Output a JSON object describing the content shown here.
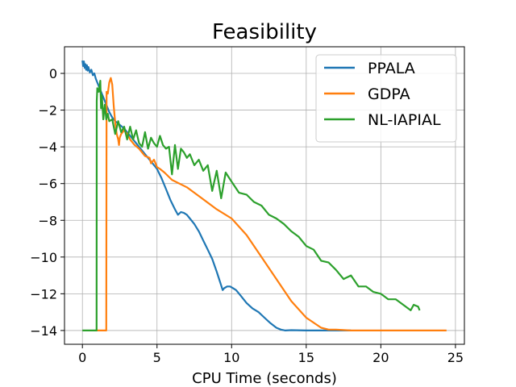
{
  "chart_data": {
    "type": "line",
    "title": "Feasibility",
    "xlabel": "CPU Time (seconds)",
    "ylabel": "",
    "xlim": [
      -1.2,
      25.6
    ],
    "ylim": [
      -14.75,
      1.45
    ],
    "xticks": [
      0,
      5,
      10,
      15,
      20,
      25
    ],
    "yticks": [
      0,
      -2,
      -4,
      -6,
      -8,
      -10,
      -12,
      -14
    ],
    "xtick_labels": [
      "0",
      "5",
      "10",
      "15",
      "20",
      "25"
    ],
    "ytick_labels": [
      "0",
      "−2",
      "−4",
      "−6",
      "−8",
      "−10",
      "−12",
      "−14"
    ],
    "grid": true,
    "legend_position": "top-right",
    "series": [
      {
        "name": "PPALA",
        "color": "#1f77b4",
        "x": [
          0.0,
          0.05,
          0.1,
          0.15,
          0.2,
          0.25,
          0.3,
          0.35,
          0.4,
          0.5,
          0.6,
          0.7,
          0.8,
          0.9,
          1.0,
          1.2,
          1.4,
          1.6,
          1.8,
          2.0,
          2.2,
          2.5,
          2.8,
          3.0,
          3.3,
          3.6,
          4.0,
          4.4,
          4.7,
          5.0,
          5.3,
          5.6,
          5.9,
          6.2,
          6.4,
          6.6,
          6.8,
          7.0,
          7.2,
          7.5,
          7.8,
          8.1,
          8.4,
          8.7,
          9.0,
          9.2,
          9.4,
          9.5,
          9.7,
          9.9,
          10.1,
          10.3,
          10.6,
          11.0,
          11.4,
          11.8,
          12.2,
          12.6,
          13.0,
          13.3,
          13.6,
          14.0,
          15.0,
          16.0,
          17.0,
          18.0
        ],
        "y": [
          0.7,
          0.4,
          0.65,
          0.3,
          0.5,
          0.2,
          0.45,
          0.15,
          0.35,
          0.05,
          0.2,
          -0.1,
          0.0,
          -0.3,
          -0.5,
          -0.9,
          -1.3,
          -1.7,
          -2.1,
          -2.4,
          -2.6,
          -2.8,
          -3.0,
          -3.2,
          -3.5,
          -3.8,
          -4.2,
          -4.6,
          -4.9,
          -5.2,
          -5.7,
          -6.3,
          -6.9,
          -7.4,
          -7.7,
          -7.55,
          -7.6,
          -7.7,
          -7.9,
          -8.2,
          -8.6,
          -9.1,
          -9.6,
          -10.1,
          -10.8,
          -11.3,
          -11.8,
          -11.7,
          -11.6,
          -11.6,
          -11.7,
          -11.8,
          -12.1,
          -12.5,
          -12.8,
          -13.0,
          -13.3,
          -13.6,
          -13.85,
          -13.95,
          -14.0,
          -13.98,
          -14.0,
          -14.0,
          -14.0,
          -14.0
        ]
      },
      {
        "name": "GDPA",
        "color": "#ff7f0e",
        "x": [
          0.9,
          1.3,
          1.6,
          1.62,
          1.7,
          1.8,
          1.9,
          2.0,
          2.1,
          2.2,
          2.3,
          2.4,
          2.45,
          2.5,
          2.6,
          2.8,
          3.0,
          3.2,
          3.5,
          3.8,
          4.0,
          4.2,
          4.5,
          4.6,
          4.8,
          4.9,
          5.0,
          5.2,
          5.5,
          6.0,
          7.0,
          8.0,
          9.0,
          10.0,
          11.0,
          12.0,
          13.0,
          14.0,
          15.0,
          16.0,
          16.5,
          17.0,
          18.0,
          19.0,
          20.0,
          21.0,
          22.0,
          23.0,
          24.0,
          24.4
        ],
        "y": [
          -14.0,
          -14.0,
          -14.0,
          -1.0,
          -1.1,
          -0.5,
          -0.25,
          -0.6,
          -1.8,
          -2.7,
          -3.3,
          -3.6,
          -3.9,
          -3.5,
          -3.3,
          -3.1,
          -3.3,
          -3.6,
          -3.9,
          -4.1,
          -4.3,
          -4.5,
          -4.6,
          -4.9,
          -4.7,
          -4.9,
          -5.1,
          -5.2,
          -5.4,
          -5.8,
          -6.2,
          -6.8,
          -7.4,
          -7.9,
          -8.8,
          -10.0,
          -11.2,
          -12.4,
          -13.3,
          -13.85,
          -13.95,
          -13.95,
          -14.0,
          -14.0,
          -14.0,
          -14.0,
          -14.0,
          -14.0,
          -14.0,
          -14.0
        ]
      },
      {
        "name": "NL-IAPIAL",
        "color": "#2ca02c",
        "x": [
          0.0,
          0.5,
          0.95,
          0.96,
          1.0,
          1.05,
          1.1,
          1.2,
          1.25,
          1.3,
          1.4,
          1.5,
          1.6,
          1.7,
          1.8,
          2.0,
          2.2,
          2.4,
          2.6,
          2.8,
          3.0,
          3.2,
          3.4,
          3.6,
          3.8,
          4.0,
          4.2,
          4.4,
          4.6,
          4.8,
          5.0,
          5.2,
          5.4,
          5.6,
          5.8,
          6.0,
          6.2,
          6.4,
          6.6,
          6.8,
          7.0,
          7.2,
          7.5,
          7.8,
          8.1,
          8.4,
          8.7,
          9.0,
          9.3,
          9.6,
          10.0,
          10.5,
          11.0,
          11.5,
          12.0,
          12.5,
          13.0,
          13.5,
          14.0,
          14.5,
          15.0,
          15.5,
          16.0,
          16.5,
          17.0,
          17.5,
          18.0,
          18.5,
          19.0,
          19.5,
          20.0,
          20.5,
          21.0,
          21.5,
          22.0,
          22.2,
          22.5,
          22.6
        ],
        "y": [
          -14.0,
          -14.0,
          -14.0,
          -1.5,
          -0.8,
          -1.0,
          -1.0,
          -0.4,
          -1.9,
          -1.2,
          -2.5,
          -1.7,
          -2.5,
          -2.2,
          -2.6,
          -2.5,
          -3.3,
          -2.6,
          -3.2,
          -2.9,
          -3.6,
          -2.9,
          -3.6,
          -3.1,
          -3.8,
          -4.0,
          -3.2,
          -4.1,
          -3.5,
          -3.8,
          -4.0,
          -3.4,
          -3.9,
          -4.1,
          -4.0,
          -5.5,
          -3.9,
          -5.2,
          -4.1,
          -4.3,
          -4.6,
          -4.4,
          -5.0,
          -4.7,
          -5.3,
          -5.0,
          -6.4,
          -5.3,
          -6.8,
          -5.4,
          -5.9,
          -6.5,
          -6.6,
          -7.0,
          -7.2,
          -7.7,
          -7.9,
          -8.2,
          -8.6,
          -8.9,
          -9.4,
          -9.6,
          -10.2,
          -10.3,
          -10.7,
          -11.2,
          -11.0,
          -11.6,
          -11.6,
          -11.9,
          -12.0,
          -12.3,
          -12.3,
          -12.6,
          -12.9,
          -12.6,
          -12.7,
          -12.9
        ]
      }
    ]
  }
}
